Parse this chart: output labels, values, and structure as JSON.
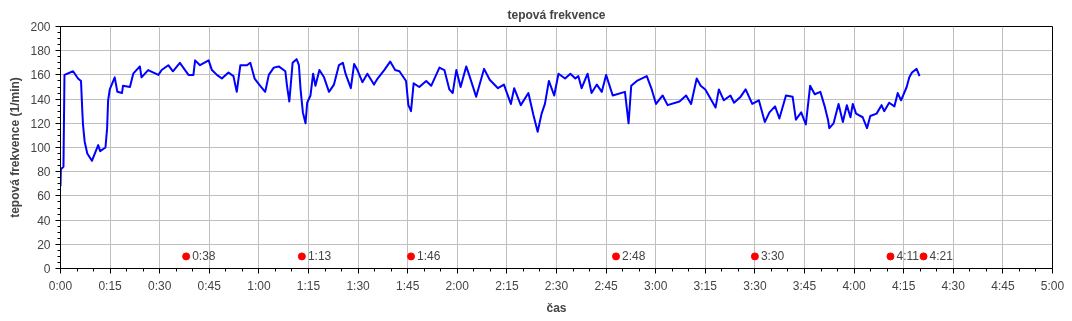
{
  "chart_data": {
    "type": "line",
    "title": "tepová frekvence",
    "xlabel": "čas",
    "ylabel": "tepová frekvence (1/min)",
    "xlim": [
      0,
      300
    ],
    "ylim": [
      0,
      200
    ],
    "xticks": [
      {
        "value": 0,
        "label": "0:00"
      },
      {
        "value": 15,
        "label": "0:15"
      },
      {
        "value": 30,
        "label": "0:30"
      },
      {
        "value": 45,
        "label": "0:45"
      },
      {
        "value": 60,
        "label": "1:00"
      },
      {
        "value": 75,
        "label": "1:15"
      },
      {
        "value": 90,
        "label": "1:30"
      },
      {
        "value": 105,
        "label": "1:45"
      },
      {
        "value": 120,
        "label": "2:00"
      },
      {
        "value": 135,
        "label": "2:15"
      },
      {
        "value": 150,
        "label": "2:30"
      },
      {
        "value": 165,
        "label": "2:45"
      },
      {
        "value": 180,
        "label": "3:00"
      },
      {
        "value": 195,
        "label": "3:15"
      },
      {
        "value": 210,
        "label": "3:30"
      },
      {
        "value": 225,
        "label": "3:45"
      },
      {
        "value": 240,
        "label": "4:00"
      },
      {
        "value": 255,
        "label": "4:15"
      },
      {
        "value": 270,
        "label": "4:30"
      },
      {
        "value": 285,
        "label": "4:45"
      },
      {
        "value": 300,
        "label": "5:00"
      }
    ],
    "yticks": [
      0,
      20,
      40,
      60,
      80,
      100,
      120,
      140,
      160,
      180,
      200
    ],
    "grid": true,
    "annotations": [
      {
        "text": "0:38",
        "x": 38,
        "y": 10
      },
      {
        "text": "1:13",
        "x": 73,
        "y": 10
      },
      {
        "text": "1:46",
        "x": 106,
        "y": 10
      },
      {
        "text": "2:48",
        "x": 168,
        "y": 10
      },
      {
        "text": "3:30",
        "x": 210,
        "y": 10
      },
      {
        "text": "4:11",
        "x": 251,
        "y": 10
      },
      {
        "text": "4:21",
        "x": 261,
        "y": 10
      }
    ],
    "series": [
      {
        "color": "#0000ff",
        "x": [
          0,
          0.1,
          0.9,
          1.2,
          3.8,
          5.3,
          6.2,
          6.6,
          6.8,
          7.3,
          8.1,
          9.5,
          11.4,
          12,
          13.6,
          14.1,
          14.4,
          14.9,
          16.4,
          17.2,
          18.6,
          18.9,
          21,
          22,
          24,
          24.5,
          26.5,
          29.6,
          30.6,
          32.6,
          34,
          36.1,
          38.7,
          40.2,
          40.7,
          42.2,
          44.8,
          45.8,
          47.3,
          48.8,
          50.8,
          52.3,
          53.3,
          54.4,
          56.4,
          57.4,
          58.7,
          60.4,
          61.9,
          63,
          64.5,
          66,
          68,
          68.5,
          69.2,
          70.2,
          71.4,
          72.1,
          72.6,
          73.3,
          74.1,
          74.6,
          75.6,
          76.4,
          77.1,
          78.3,
          79.7,
          81.2,
          82.7,
          84.2,
          85.4,
          86.2,
          87.8,
          88.8,
          89.8,
          91.3,
          92.8,
          94.8,
          95.9,
          97.9,
          99.7,
          101.2,
          102.5,
          104.5,
          105.2,
          106,
          106.8,
          108.5,
          110.6,
          112.1,
          114.6,
          116.1,
          117.6,
          118.6,
          119.7,
          121,
          122.7,
          123.7,
          125.7,
          128.1,
          129.8,
          132.3,
          134.1,
          136.2,
          137.2,
          139.2,
          141.5,
          143,
          144.3,
          145.5,
          146.5,
          147.7,
          149.3,
          150.6,
          152.6,
          154.2,
          155.7,
          156.6,
          157.6,
          159.4,
          160.6,
          162.2,
          163.7,
          165,
          167,
          170.7,
          171.8,
          172.6,
          174.3,
          177.3,
          178.8,
          180.1,
          182.1,
          183.6,
          187.2,
          189.2,
          190.7,
          192.4,
          193.6,
          195,
          198.1,
          199.1,
          200.6,
          202.6,
          203.7,
          205.7,
          207.2,
          209.2,
          211.2,
          213,
          214.4,
          216.1,
          217.4,
          219.4,
          221.4,
          222.4,
          224,
          225.4,
          226.7,
          228.1,
          229.8,
          231.1,
          232.1,
          232.5,
          233.8,
          235.3,
          236.6,
          237.8,
          238.9,
          239.6,
          240.6,
          242.6,
          243.9,
          244.9,
          246.8,
          248.3,
          249.1,
          250.6,
          252.2,
          253.2,
          254.2,
          255.9,
          256.7,
          257.5,
          258.9,
          259.8
        ],
        "values": [
          68,
          82,
          84,
          160,
          163,
          157,
          155,
          130,
          119,
          105,
          95,
          89,
          102,
          97,
          100,
          116,
          139,
          148,
          158,
          146,
          145,
          151,
          150,
          161,
          167,
          158,
          164,
          160,
          164,
          168,
          163,
          170,
          160,
          160,
          172,
          168,
          172,
          164,
          160,
          157,
          162,
          159,
          146,
          168,
          168,
          170,
          157,
          151,
          146,
          160,
          166,
          167,
          163,
          151,
          138,
          170,
          173,
          168,
          148,
          129,
          120,
          137,
          143,
          161,
          151,
          164,
          158,
          146,
          152,
          168,
          170,
          161,
          149,
          169,
          164,
          154,
          161,
          152,
          157,
          164,
          171,
          164,
          163,
          155,
          135,
          130,
          153,
          150,
          155,
          151,
          166,
          164,
          148,
          145,
          164,
          150,
          167,
          159,
          142,
          165,
          156,
          149,
          152,
          136,
          149,
          135,
          145,
          127,
          113,
          128,
          136,
          155,
          143,
          161,
          157,
          161,
          157,
          159,
          149,
          161,
          145,
          152,
          146,
          160,
          143,
          146,
          120,
          151,
          155,
          159,
          148,
          136,
          143,
          135,
          138,
          143,
          136,
          157,
          151,
          148,
          133,
          148,
          139,
          143,
          137,
          142,
          148,
          136,
          139,
          121,
          129,
          134,
          124,
          143,
          142,
          123,
          129,
          119,
          151,
          144,
          146,
          134,
          123,
          116,
          120,
          136,
          121,
          135,
          125,
          136,
          128,
          125,
          116,
          126,
          128,
          135,
          130,
          137,
          134,
          145,
          139,
          150,
          158,
          162,
          165,
          159
        ]
      },
      {
        "type": "scatter",
        "color": "#ff0000",
        "marker": "circle",
        "x": [
          38,
          73,
          106,
          168,
          210,
          251,
          261
        ],
        "values": [
          10,
          10,
          10,
          10,
          10,
          10,
          10
        ]
      }
    ]
  }
}
